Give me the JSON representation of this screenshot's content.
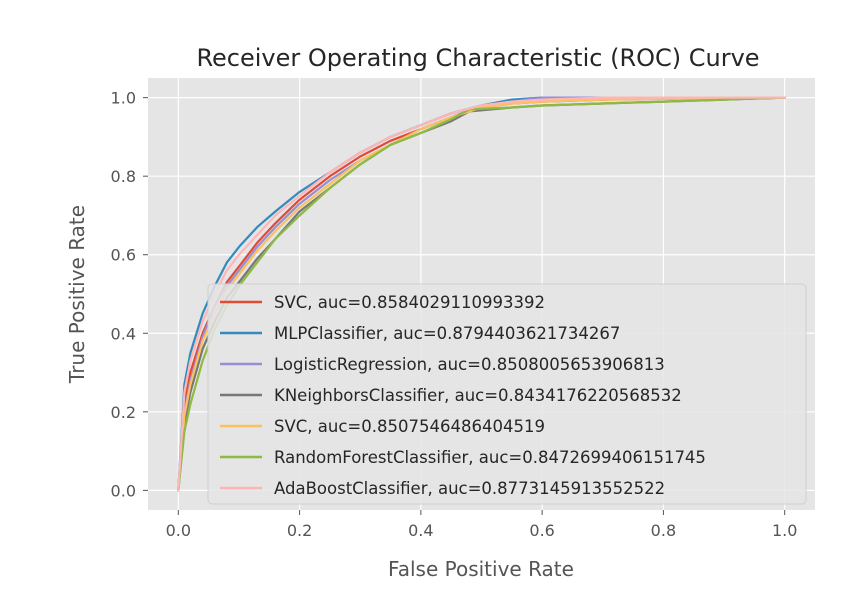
{
  "chart_data": {
    "type": "line",
    "title": "Receiver Operating Characteristic (ROC) Curve",
    "xlabel": "False Positive Rate",
    "ylabel": "True Positive Rate",
    "xlim": [
      -0.05,
      1.05
    ],
    "ylim": [
      -0.05,
      1.05
    ],
    "xticks": [
      "0.0",
      "0.2",
      "0.4",
      "0.6",
      "0.8",
      "1.0"
    ],
    "yticks": [
      "0.0",
      "0.2",
      "0.4",
      "0.6",
      "0.8",
      "1.0"
    ],
    "grid": true,
    "legend_position": "lower-right",
    "series": [
      {
        "name": "SVC, auc=0.8584029110993392",
        "color": "#E24A33",
        "x": [
          0,
          0.01,
          0.02,
          0.04,
          0.06,
          0.08,
          0.1,
          0.13,
          0.16,
          0.2,
          0.25,
          0.3,
          0.35,
          0.4,
          0.45,
          0.5,
          0.55,
          0.6,
          0.7,
          0.8,
          0.9,
          1.0
        ],
        "y": [
          0,
          0.22,
          0.3,
          0.4,
          0.47,
          0.53,
          0.57,
          0.63,
          0.68,
          0.74,
          0.8,
          0.85,
          0.89,
          0.92,
          0.95,
          0.975,
          0.985,
          0.99,
          0.995,
          0.997,
          0.999,
          1.0
        ]
      },
      {
        "name": "MLPClassifier, auc=0.8794403621734267",
        "color": "#348ABD",
        "x": [
          0,
          0.01,
          0.02,
          0.04,
          0.06,
          0.08,
          0.1,
          0.13,
          0.16,
          0.2,
          0.25,
          0.3,
          0.35,
          0.4,
          0.45,
          0.5,
          0.55,
          0.6,
          0.7,
          0.8,
          0.9,
          1.0
        ],
        "y": [
          0,
          0.27,
          0.35,
          0.45,
          0.52,
          0.58,
          0.62,
          0.67,
          0.71,
          0.76,
          0.81,
          0.86,
          0.9,
          0.93,
          0.96,
          0.98,
          0.995,
          1.0,
          1.0,
          1.0,
          1.0,
          1.0
        ]
      },
      {
        "name": "LogisticRegression, auc=0.8508005653906813",
        "color": "#988ED5",
        "x": [
          0,
          0.01,
          0.02,
          0.04,
          0.06,
          0.08,
          0.1,
          0.13,
          0.16,
          0.2,
          0.25,
          0.3,
          0.35,
          0.4,
          0.45,
          0.5,
          0.55,
          0.6,
          0.7,
          0.8,
          0.9,
          1.0
        ],
        "y": [
          0,
          0.2,
          0.28,
          0.39,
          0.47,
          0.52,
          0.56,
          0.62,
          0.67,
          0.73,
          0.79,
          0.84,
          0.88,
          0.92,
          0.95,
          0.98,
          0.99,
          1.0,
          1.0,
          1.0,
          1.0,
          1.0
        ]
      },
      {
        "name": "KNeighborsClassifier, auc=0.8434176220568532",
        "color": "#777777",
        "x": [
          0,
          0.01,
          0.02,
          0.04,
          0.06,
          0.08,
          0.1,
          0.13,
          0.16,
          0.2,
          0.25,
          0.3,
          0.35,
          0.4,
          0.45,
          0.48,
          0.55,
          0.6,
          0.7,
          0.8,
          0.9,
          1.0
        ],
        "y": [
          0,
          0.17,
          0.25,
          0.36,
          0.43,
          0.49,
          0.53,
          0.59,
          0.64,
          0.71,
          0.77,
          0.83,
          0.88,
          0.91,
          0.94,
          0.965,
          0.975,
          0.98,
          0.985,
          0.99,
          0.995,
          1.0
        ]
      },
      {
        "name": "SVC, auc=0.8507546486404519",
        "color": "#FBC15E",
        "x": [
          0,
          0.01,
          0.02,
          0.04,
          0.06,
          0.08,
          0.1,
          0.13,
          0.16,
          0.2,
          0.25,
          0.3,
          0.35,
          0.4,
          0.45,
          0.5,
          0.55,
          0.6,
          0.7,
          0.8,
          0.9,
          1.0
        ],
        "y": [
          0,
          0.19,
          0.27,
          0.38,
          0.45,
          0.51,
          0.55,
          0.61,
          0.66,
          0.72,
          0.78,
          0.84,
          0.88,
          0.92,
          0.95,
          0.975,
          0.985,
          0.99,
          0.995,
          0.997,
          0.999,
          1.0
        ]
      },
      {
        "name": "RandomForestClassifier, auc=0.8472699406151745",
        "color": "#8EBA42",
        "x": [
          0,
          0.01,
          0.02,
          0.04,
          0.06,
          0.08,
          0.1,
          0.13,
          0.16,
          0.2,
          0.25,
          0.3,
          0.35,
          0.4,
          0.45,
          0.48,
          0.55,
          0.6,
          0.7,
          0.8,
          0.9,
          1.0
        ],
        "y": [
          0,
          0.15,
          0.22,
          0.33,
          0.41,
          0.47,
          0.52,
          0.58,
          0.64,
          0.7,
          0.77,
          0.83,
          0.88,
          0.91,
          0.945,
          0.97,
          0.975,
          0.98,
          0.985,
          0.99,
          0.995,
          1.0
        ]
      },
      {
        "name": "AdaBoostClassifier, auc=0.8773145913552522",
        "color": "#FFB5B8",
        "x": [
          0,
          0.01,
          0.02,
          0.04,
          0.06,
          0.08,
          0.1,
          0.13,
          0.16,
          0.2,
          0.25,
          0.3,
          0.35,
          0.4,
          0.45,
          0.5,
          0.55,
          0.6,
          0.7,
          0.8,
          0.9,
          1.0
        ],
        "y": [
          0,
          0.25,
          0.33,
          0.43,
          0.5,
          0.56,
          0.6,
          0.65,
          0.7,
          0.75,
          0.81,
          0.86,
          0.9,
          0.93,
          0.96,
          0.98,
          0.99,
          0.995,
          1.0,
          1.0,
          1.0,
          1.0
        ]
      }
    ]
  }
}
